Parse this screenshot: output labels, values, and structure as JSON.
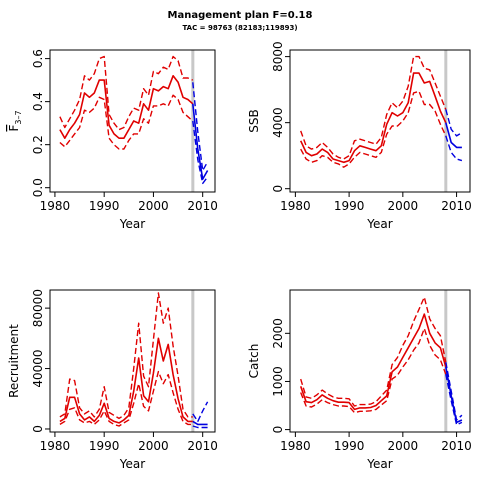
{
  "title": "Management plan F=0.18",
  "subtitle": "TAC = 98763 (82183;119893)",
  "colors": {
    "historic": "#e00000",
    "forecast": "#0000e0",
    "divider": "#c8c8c8",
    "axis": "#000000"
  },
  "chart_data": [
    {
      "type": "line",
      "ylabel": "F̄3–7",
      "ylabel_main": "F",
      "ylabel_sub": "3–7",
      "xlabel": "Year",
      "xlim": [
        1979,
        2012.5
      ],
      "ylim": [
        -0.02,
        0.64
      ],
      "xticks": [
        1980,
        1990,
        2000,
        2010
      ],
      "yticks": [
        0.0,
        0.2,
        0.4,
        0.6
      ],
      "ytick_labels": [
        "0.0",
        "0.2",
        "0.4",
        "0.6"
      ],
      "divider_x": 2008,
      "series": [
        {
          "role": "historic",
          "style": "solid",
          "x": [
            1981,
            1982,
            1983,
            1984,
            1985,
            1986,
            1987,
            1988,
            1989,
            1990,
            1991,
            1992,
            1993,
            1994,
            1995,
            1996,
            1997,
            1998,
            1999,
            2000,
            2001,
            2002,
            2003,
            2004,
            2005,
            2006,
            2007,
            2008
          ],
          "y": [
            0.27,
            0.23,
            0.27,
            0.3,
            0.34,
            0.44,
            0.42,
            0.44,
            0.5,
            0.5,
            0.29,
            0.25,
            0.23,
            0.23,
            0.27,
            0.31,
            0.3,
            0.39,
            0.36,
            0.46,
            0.45,
            0.47,
            0.46,
            0.52,
            0.49,
            0.42,
            0.41,
            0.39
          ]
        },
        {
          "role": "historic",
          "style": "dashed",
          "x": [
            1981,
            1982,
            1983,
            1984,
            1985,
            1986,
            1987,
            1988,
            1989,
            1990,
            1991,
            1992,
            1993,
            1994,
            1995,
            1996,
            1997,
            1998,
            1999,
            2000,
            2001,
            2002,
            2003,
            2004,
            2005,
            2006,
            2007,
            2008
          ],
          "y": [
            0.33,
            0.28,
            0.32,
            0.36,
            0.41,
            0.52,
            0.5,
            0.53,
            0.6,
            0.61,
            0.34,
            0.3,
            0.27,
            0.28,
            0.33,
            0.37,
            0.36,
            0.46,
            0.43,
            0.54,
            0.53,
            0.56,
            0.55,
            0.61,
            0.59,
            0.51,
            0.51,
            0.5
          ]
        },
        {
          "role": "historic",
          "style": "dashed",
          "x": [
            1981,
            1982,
            1983,
            1984,
            1985,
            1986,
            1987,
            1988,
            1989,
            1990,
            1991,
            1992,
            1993,
            1994,
            1995,
            1996,
            1997,
            1998,
            1999,
            2000,
            2001,
            2002,
            2003,
            2004,
            2005,
            2006,
            2007,
            2008
          ],
          "y": [
            0.21,
            0.19,
            0.22,
            0.25,
            0.28,
            0.36,
            0.35,
            0.37,
            0.42,
            0.41,
            0.23,
            0.2,
            0.18,
            0.18,
            0.22,
            0.25,
            0.25,
            0.32,
            0.3,
            0.38,
            0.38,
            0.39,
            0.38,
            0.43,
            0.41,
            0.35,
            0.33,
            0.31
          ]
        },
        {
          "role": "forecast",
          "style": "solid",
          "x": [
            2008,
            2009,
            2010,
            2011
          ],
          "y": [
            0.39,
            0.18,
            0.04,
            0.08
          ]
        },
        {
          "role": "forecast",
          "style": "dashed",
          "x": [
            2008,
            2009,
            2010,
            2011
          ],
          "y": [
            0.49,
            0.26,
            0.08,
            0.12
          ]
        },
        {
          "role": "forecast",
          "style": "dashed",
          "x": [
            2008,
            2009,
            2010,
            2011
          ],
          "y": [
            0.31,
            0.13,
            0.02,
            0.05
          ]
        }
      ]
    },
    {
      "type": "line",
      "ylabel": "SSB",
      "xlabel": "Year",
      "xlim": [
        1979,
        2012.5
      ],
      "ylim": [
        -200,
        8400
      ],
      "xticks": [
        1980,
        1990,
        2000,
        2010
      ],
      "yticks": [
        0,
        4000,
        8000
      ],
      "ytick_labels": [
        "0",
        "4000",
        "8000"
      ],
      "divider_x": 2008,
      "series": [
        {
          "role": "historic",
          "style": "solid",
          "x": [
            1981,
            1982,
            1983,
            1984,
            1985,
            1986,
            1987,
            1988,
            1989,
            1990,
            1991,
            1992,
            1993,
            1994,
            1995,
            1996,
            1997,
            1998,
            1999,
            2000,
            2001,
            2002,
            2003,
            2004,
            2005,
            2006,
            2007,
            2008
          ],
          "y": [
            2900,
            2200,
            2000,
            2100,
            2400,
            2200,
            1800,
            1700,
            1600,
            1700,
            2300,
            2600,
            2500,
            2400,
            2300,
            2600,
            3900,
            4600,
            4400,
            4600,
            5200,
            7000,
            7000,
            6400,
            6500,
            5600,
            4700,
            4000
          ]
        },
        {
          "role": "historic",
          "style": "dashed",
          "x": [
            1981,
            1982,
            1983,
            1984,
            1985,
            1986,
            1987,
            1988,
            1989,
            1990,
            1991,
            1992,
            1993,
            1994,
            1995,
            1996,
            1997,
            1998,
            1999,
            2000,
            2001,
            2002,
            2003,
            2004,
            2005,
            2006,
            2007,
            2008
          ],
          "y": [
            3500,
            2600,
            2400,
            2500,
            2800,
            2500,
            2100,
            1900,
            1800,
            2000,
            2900,
            3000,
            2900,
            2800,
            2700,
            3100,
            4500,
            5200,
            4900,
            5300,
            6200,
            8000,
            8000,
            7300,
            7200,
            6400,
            5600,
            4800
          ]
        },
        {
          "role": "historic",
          "style": "dashed",
          "x": [
            1981,
            1982,
            1983,
            1984,
            1985,
            1986,
            1987,
            1988,
            1989,
            1990,
            1991,
            1992,
            1993,
            1994,
            1995,
            1996,
            1997,
            1998,
            1999,
            2000,
            2001,
            2002,
            2003,
            2004,
            2005,
            2006,
            2007,
            2008
          ],
          "y": [
            2400,
            1800,
            1600,
            1700,
            2000,
            1900,
            1600,
            1500,
            1300,
            1500,
            1900,
            2200,
            2100,
            2000,
            1900,
            2200,
            3300,
            3800,
            3800,
            4100,
            4600,
            5800,
            5900,
            5100,
            5100,
            4700,
            3900,
            3200
          ]
        },
        {
          "role": "forecast",
          "style": "solid",
          "x": [
            2008,
            2009,
            2010,
            2011
          ],
          "y": [
            4000,
            2800,
            2500,
            2500
          ]
        },
        {
          "role": "forecast",
          "style": "dashed",
          "x": [
            2008,
            2009,
            2010,
            2011
          ],
          "y": [
            4800,
            3600,
            3200,
            3400
          ]
        },
        {
          "role": "forecast",
          "style": "dashed",
          "x": [
            2008,
            2009,
            2010,
            2011
          ],
          "y": [
            3200,
            2200,
            1800,
            1700
          ]
        }
      ]
    },
    {
      "type": "line",
      "ylabel": "Recruitment",
      "xlabel": "Year",
      "xlim": [
        1979,
        2012.5
      ],
      "ylim": [
        -2000,
        92000
      ],
      "xticks": [
        1980,
        1990,
        2000,
        2010
      ],
      "yticks": [
        0,
        40000,
        80000
      ],
      "ytick_labels": [
        "0",
        "40000",
        "80000"
      ],
      "divider_x": 2008,
      "series": [
        {
          "role": "historic",
          "style": "solid",
          "x": [
            1981,
            1982,
            1983,
            1984,
            1985,
            1986,
            1987,
            1988,
            1989,
            1990,
            1991,
            1992,
            1993,
            1994,
            1995,
            1996,
            1997,
            1998,
            1999,
            2000,
            2001,
            2002,
            2003,
            2004,
            2005,
            2006,
            2007,
            2008
          ],
          "y": [
            5000,
            7000,
            21000,
            21000,
            10000,
            6000,
            8000,
            5000,
            9000,
            17000,
            7000,
            5000,
            4000,
            6000,
            9000,
            25000,
            47000,
            22000,
            18000,
            37000,
            60000,
            45000,
            56000,
            36000,
            20000,
            8000,
            5000,
            5000
          ]
        },
        {
          "role": "historic",
          "style": "dashed",
          "x": [
            1981,
            1982,
            1983,
            1984,
            1985,
            1986,
            1987,
            1988,
            1989,
            1990,
            1991,
            1992,
            1993,
            1994,
            1995,
            1996,
            1997,
            1998,
            1999,
            2000,
            2001,
            2002,
            2003,
            2004,
            2005,
            2006,
            2007,
            2008
          ],
          "y": [
            8000,
            10000,
            33000,
            32000,
            14000,
            10000,
            12000,
            8000,
            13000,
            28000,
            11000,
            9000,
            7000,
            9000,
            14000,
            40000,
            70000,
            35000,
            28000,
            59000,
            90000,
            70000,
            80000,
            55000,
            35000,
            13000,
            8000,
            8000
          ]
        },
        {
          "role": "historic",
          "style": "dashed",
          "x": [
            1981,
            1982,
            1983,
            1984,
            1985,
            1986,
            1987,
            1988,
            1989,
            1990,
            1991,
            1992,
            1993,
            1994,
            1995,
            1996,
            1997,
            1998,
            1999,
            2000,
            2001,
            2002,
            2003,
            2004,
            2005,
            2006,
            2007,
            2008
          ],
          "y": [
            3000,
            5000,
            13000,
            14000,
            6000,
            4000,
            5000,
            3000,
            6000,
            12000,
            5000,
            3000,
            2000,
            4000,
            6000,
            17000,
            30000,
            15000,
            12000,
            25000,
            38000,
            30000,
            36000,
            24000,
            13000,
            5000,
            3000,
            3000
          ]
        },
        {
          "role": "forecast",
          "style": "solid",
          "x": [
            2008,
            2009,
            2010,
            2011
          ],
          "y": [
            5000,
            3000,
            3000,
            3000
          ]
        },
        {
          "role": "forecast",
          "style": "dashed",
          "x": [
            2008,
            2009,
            2010,
            2011
          ],
          "y": [
            10000,
            5000,
            12000,
            18000
          ]
        },
        {
          "role": "forecast",
          "style": "dashed",
          "x": [
            2008,
            2009,
            2010,
            2011
          ],
          "y": [
            2000,
            1000,
            1000,
            1000
          ]
        }
      ]
    },
    {
      "type": "line",
      "ylabel": "Catch",
      "xlabel": "Year",
      "xlim": [
        1979,
        2012.5
      ],
      "ylim": [
        -50,
        2900
      ],
      "xticks": [
        1980,
        1990,
        2000,
        2010
      ],
      "yticks": [
        0,
        1000,
        2000
      ],
      "ytick_labels": [
        "0",
        "1000",
        "2000"
      ],
      "divider_x": 2008,
      "series": [
        {
          "role": "historic",
          "style": "solid",
          "x": [
            1981,
            1982,
            1983,
            1984,
            1985,
            1986,
            1987,
            1988,
            1989,
            1990,
            1991,
            1992,
            1993,
            1994,
            1995,
            1996,
            1997,
            1998,
            1999,
            2000,
            2001,
            2002,
            2003,
            2004,
            2005,
            2006,
            2007,
            2008
          ],
          "y": [
            900,
            580,
            560,
            620,
            720,
            650,
            600,
            570,
            570,
            560,
            420,
            450,
            450,
            460,
            500,
            600,
            700,
            1200,
            1300,
            1500,
            1700,
            1900,
            2100,
            2400,
            2000,
            1800,
            1700,
            1300
          ]
        },
        {
          "role": "historic",
          "style": "dashed",
          "x": [
            1981,
            1982,
            1983,
            1984,
            1985,
            1986,
            1987,
            1988,
            1989,
            1990,
            1991,
            1992,
            1993,
            1994,
            1995,
            1996,
            1997,
            1998,
            1999,
            2000,
            2001,
            2002,
            2003,
            2004,
            2005,
            2006,
            2007,
            2008
          ],
          "y": [
            1050,
            680,
            650,
            720,
            820,
            740,
            680,
            650,
            650,
            640,
            490,
            520,
            520,
            530,
            580,
            700,
            820,
            1350,
            1500,
            1750,
            1950,
            2250,
            2500,
            2750,
            2300,
            2100,
            1950,
            1400
          ]
        },
        {
          "role": "historic",
          "style": "dashed",
          "x": [
            1981,
            1982,
            1983,
            1984,
            1985,
            1986,
            1987,
            1988,
            1989,
            1990,
            1991,
            1992,
            1993,
            1994,
            1995,
            1996,
            1997,
            1998,
            1999,
            2000,
            2001,
            2002,
            2003,
            2004,
            2005,
            2006,
            2007,
            2008
          ],
          "y": [
            770,
            490,
            470,
            530,
            620,
            560,
            520,
            490,
            490,
            480,
            350,
            380,
            380,
            390,
            420,
            510,
            600,
            1050,
            1130,
            1300,
            1450,
            1650,
            1800,
            2100,
            1750,
            1550,
            1450,
            1150
          ]
        },
        {
          "role": "forecast",
          "style": "solid",
          "x": [
            2008,
            2009,
            2010,
            2011
          ],
          "y": [
            1300,
            700,
            150,
            200
          ]
        },
        {
          "role": "forecast",
          "style": "dashed",
          "x": [
            2008,
            2009,
            2010,
            2011
          ],
          "y": [
            1400,
            800,
            200,
            300
          ]
        },
        {
          "role": "forecast",
          "style": "dashed",
          "x": [
            2008,
            2009,
            2010,
            2011
          ],
          "y": [
            1150,
            600,
            100,
            150
          ]
        }
      ]
    }
  ]
}
